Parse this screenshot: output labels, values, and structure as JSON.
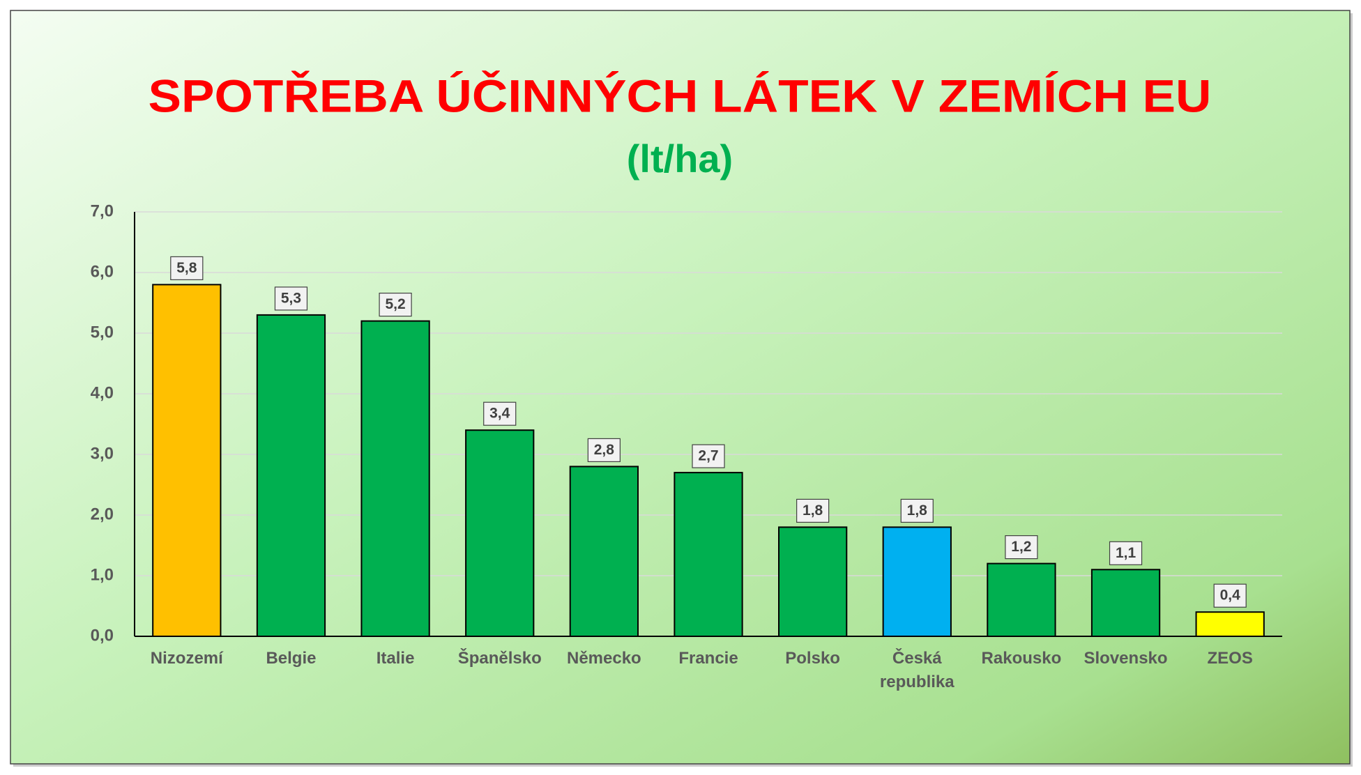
{
  "chart_data": {
    "type": "bar",
    "title": "SPOTŘEBA ÚČINNÝCH LÁTEK V ZEMÍCH EU",
    "subtitle": "(lt/ha)",
    "categories": [
      "Nizozemí",
      "Belgie",
      "Italie",
      "Španělsko",
      "Německo",
      "Francie",
      "Polsko",
      "Česká republika",
      "Rakousko",
      "Slovensko",
      "ZEOS"
    ],
    "values": [
      5.8,
      5.3,
      5.2,
      3.4,
      2.8,
      2.7,
      1.8,
      1.8,
      1.2,
      1.1,
      0.4
    ],
    "value_labels": [
      "5,8",
      "5,3",
      "5,2",
      "3,4",
      "2,8",
      "2,7",
      "1,8",
      "1,8",
      "1,2",
      "1,1",
      "0,4"
    ],
    "colors": [
      "#ffc000",
      "#00b050",
      "#00b050",
      "#00b050",
      "#00b050",
      "#00b050",
      "#00b050",
      "#00b0f0",
      "#00b050",
      "#00b050",
      "#ffff00"
    ],
    "ylim": [
      0,
      7
    ],
    "yticks": [
      {
        "value": 0,
        "label": "0,0"
      },
      {
        "value": 1,
        "label": "1,0"
      },
      {
        "value": 2,
        "label": "2,0"
      },
      {
        "value": 3,
        "label": "3,0"
      },
      {
        "value": 4,
        "label": "4,0"
      },
      {
        "value": 5,
        "label": "5,0"
      },
      {
        "value": 6,
        "label": "6,0"
      },
      {
        "value": 7,
        "label": "7,0"
      }
    ],
    "grid": true
  }
}
